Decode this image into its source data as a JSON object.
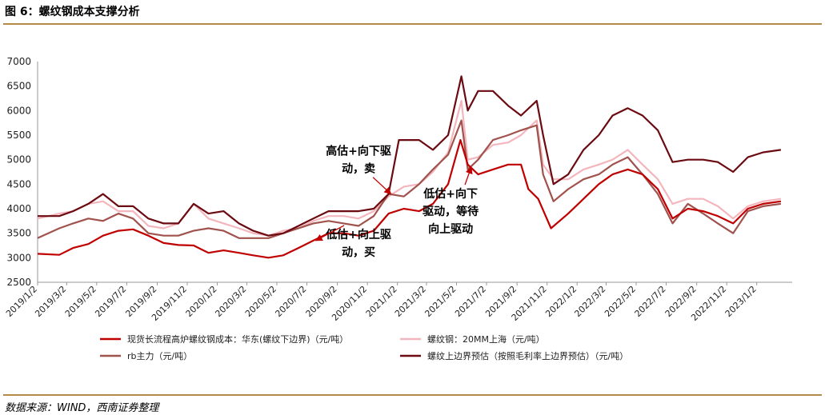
{
  "figure": {
    "title": "图 6：螺纹钢成本支撑分析",
    "source": "数据来源：WIND，西南证券整理"
  },
  "chart_data": {
    "type": "line",
    "x_ticks": [
      "2019/1/2",
      "2019/3/2",
      "2019/5/2",
      "2019/7/2",
      "2019/9/2",
      "2019/11/2",
      "2020/1/2",
      "2020/3/2",
      "2020/5/2",
      "2020/7/2",
      "2020/9/2",
      "2020/11/2",
      "2021/1/2",
      "2021/3/2",
      "2021/5/2",
      "2021/7/2",
      "2021/9/2",
      "2021/11/2",
      "2022/1/2",
      "2022/3/2",
      "2022/5/2",
      "2022/7/2",
      "2022/9/2",
      "2022/11/2",
      "2023/1/2"
    ],
    "ylim": [
      2500,
      7000
    ],
    "y_ticks": [
      2500,
      3000,
      3500,
      4000,
      4500,
      5000,
      5500,
      6000,
      6500,
      7000
    ],
    "grid": false,
    "legend_position": "bottom",
    "series": [
      {
        "name": "现货长流程高炉螺纹钢成本：华东(螺纹下边界)（元/吨）",
        "color": "#c00000",
        "points": [
          [
            "2019/1/2",
            3080
          ],
          [
            "2019/2/15",
            3060
          ],
          [
            "2019/3/15",
            3200
          ],
          [
            "2019/4/15",
            3280
          ],
          [
            "2019/5/15",
            3450
          ],
          [
            "2019/6/15",
            3550
          ],
          [
            "2019/7/15",
            3580
          ],
          [
            "2019/8/15",
            3450
          ],
          [
            "2019/9/15",
            3300
          ],
          [
            "2019/10/15",
            3260
          ],
          [
            "2019/11/15",
            3250
          ],
          [
            "2019/12/15",
            3100
          ],
          [
            "2020/1/15",
            3150
          ],
          [
            "2020/2/15",
            3100
          ],
          [
            "2020/3/15",
            3050
          ],
          [
            "2020/4/15",
            3000
          ],
          [
            "2020/5/15",
            3050
          ],
          [
            "2020/6/15",
            3200
          ],
          [
            "2020/7/15",
            3350
          ],
          [
            "2020/8/15",
            3500
          ],
          [
            "2020/9/15",
            3500
          ],
          [
            "2020/10/15",
            3450
          ],
          [
            "2020/11/15",
            3550
          ],
          [
            "2020/12/15",
            3900
          ],
          [
            "2021/1/15",
            4000
          ],
          [
            "2021/2/15",
            3950
          ],
          [
            "2021/3/15",
            4100
          ],
          [
            "2021/4/15",
            4500
          ],
          [
            "2021/5/10",
            5400
          ],
          [
            "2021/5/25",
            4900
          ],
          [
            "2021/6/15",
            4700
          ],
          [
            "2021/7/15",
            4800
          ],
          [
            "2021/8/15",
            4900
          ],
          [
            "2021/9/10",
            4900
          ],
          [
            "2021/9/25",
            4400
          ],
          [
            "2021/10/15",
            4200
          ],
          [
            "2021/11/10",
            3600
          ],
          [
            "2021/12/15",
            3900
          ],
          [
            "2022/1/15",
            4200
          ],
          [
            "2022/2/15",
            4500
          ],
          [
            "2022/3/15",
            4700
          ],
          [
            "2022/4/15",
            4800
          ],
          [
            "2022/5/15",
            4700
          ],
          [
            "2022/6/15",
            4400
          ],
          [
            "2022/7/15",
            3800
          ],
          [
            "2022/8/15",
            4000
          ],
          [
            "2022/9/15",
            3950
          ],
          [
            "2022/10/15",
            3850
          ],
          [
            "2022/11/15",
            3700
          ],
          [
            "2022/12/15",
            4000
          ],
          [
            "2023/1/15",
            4100
          ],
          [
            "2023/2/20",
            4150
          ]
        ]
      },
      {
        "name": "螺纹钢：20MM上海（元/吨）",
        "color": "#f4b6bd",
        "points": [
          [
            "2019/1/2",
            3800
          ],
          [
            "2019/2/15",
            3900
          ],
          [
            "2019/3/15",
            3950
          ],
          [
            "2019/4/15",
            4100
          ],
          [
            "2019/5/15",
            4150
          ],
          [
            "2019/6/15",
            3950
          ],
          [
            "2019/7/15",
            3950
          ],
          [
            "2019/8/15",
            3650
          ],
          [
            "2019/9/15",
            3600
          ],
          [
            "2019/10/15",
            3700
          ],
          [
            "2019/11/15",
            4100
          ],
          [
            "2019/12/15",
            3800
          ],
          [
            "2020/1/15",
            3700
          ],
          [
            "2020/2/15",
            3600
          ],
          [
            "2020/3/15",
            3500
          ],
          [
            "2020/4/15",
            3450
          ],
          [
            "2020/5/15",
            3550
          ],
          [
            "2020/6/15",
            3600
          ],
          [
            "2020/7/15",
            3750
          ],
          [
            "2020/8/15",
            3850
          ],
          [
            "2020/9/15",
            3850
          ],
          [
            "2020/10/15",
            3800
          ],
          [
            "2020/11/15",
            3950
          ],
          [
            "2020/12/15",
            4250
          ],
          [
            "2021/1/15",
            4450
          ],
          [
            "2021/2/15",
            4500
          ],
          [
            "2021/3/15",
            4750
          ],
          [
            "2021/4/15",
            5150
          ],
          [
            "2021/5/12",
            6200
          ],
          [
            "2021/5/25",
            5000
          ],
          [
            "2021/6/15",
            5050
          ],
          [
            "2021/7/15",
            5300
          ],
          [
            "2021/8/15",
            5350
          ],
          [
            "2021/9/10",
            5500
          ],
          [
            "2021/10/12",
            5800
          ],
          [
            "2021/10/25",
            4900
          ],
          [
            "2021/11/15",
            4600
          ],
          [
            "2021/12/15",
            4600
          ],
          [
            "2022/1/15",
            4800
          ],
          [
            "2022/2/15",
            4900
          ],
          [
            "2022/3/15",
            5000
          ],
          [
            "2022/4/15",
            5200
          ],
          [
            "2022/5/15",
            4900
          ],
          [
            "2022/6/15",
            4600
          ],
          [
            "2022/7/15",
            4100
          ],
          [
            "2022/8/15",
            4200
          ],
          [
            "2022/9/15",
            4200
          ],
          [
            "2022/10/15",
            4050
          ],
          [
            "2022/11/15",
            3800
          ],
          [
            "2022/12/15",
            4050
          ],
          [
            "2023/1/15",
            4150
          ],
          [
            "2023/2/20",
            4200
          ]
        ]
      },
      {
        "name": "rb主力（元/吨）",
        "color": "#a0524d",
        "points": [
          [
            "2019/1/2",
            3400
          ],
          [
            "2019/2/15",
            3600
          ],
          [
            "2019/3/15",
            3700
          ],
          [
            "2019/4/15",
            3800
          ],
          [
            "2019/5/15",
            3750
          ],
          [
            "2019/6/15",
            3900
          ],
          [
            "2019/7/15",
            3800
          ],
          [
            "2019/8/15",
            3500
          ],
          [
            "2019/9/15",
            3450
          ],
          [
            "2019/10/15",
            3450
          ],
          [
            "2019/11/15",
            3550
          ],
          [
            "2019/12/15",
            3600
          ],
          [
            "2020/1/15",
            3550
          ],
          [
            "2020/2/15",
            3400
          ],
          [
            "2020/3/15",
            3400
          ],
          [
            "2020/4/15",
            3400
          ],
          [
            "2020/5/15",
            3500
          ],
          [
            "2020/6/15",
            3600
          ],
          [
            "2020/7/15",
            3700
          ],
          [
            "2020/8/15",
            3750
          ],
          [
            "2020/9/15",
            3700
          ],
          [
            "2020/10/15",
            3650
          ],
          [
            "2020/11/15",
            3850
          ],
          [
            "2020/12/15",
            4300
          ],
          [
            "2021/1/15",
            4250
          ],
          [
            "2021/2/15",
            4500
          ],
          [
            "2021/3/15",
            4800
          ],
          [
            "2021/4/15",
            5100
          ],
          [
            "2021/5/12",
            5800
          ],
          [
            "2021/5/25",
            4800
          ],
          [
            "2021/6/15",
            5000
          ],
          [
            "2021/7/15",
            5400
          ],
          [
            "2021/8/15",
            5500
          ],
          [
            "2021/9/10",
            5600
          ],
          [
            "2021/10/12",
            5700
          ],
          [
            "2021/10/25",
            4700
          ],
          [
            "2021/11/15",
            4150
          ],
          [
            "2021/12/15",
            4400
          ],
          [
            "2022/1/15",
            4600
          ],
          [
            "2022/2/15",
            4700
          ],
          [
            "2022/3/15",
            4900
          ],
          [
            "2022/4/15",
            5050
          ],
          [
            "2022/5/15",
            4700
          ],
          [
            "2022/6/15",
            4300
          ],
          [
            "2022/7/15",
            3700
          ],
          [
            "2022/8/15",
            4100
          ],
          [
            "2022/9/15",
            3900
          ],
          [
            "2022/10/15",
            3700
          ],
          [
            "2022/11/15",
            3500
          ],
          [
            "2022/12/15",
            3950
          ],
          [
            "2023/1/15",
            4050
          ],
          [
            "2023/2/20",
            4100
          ]
        ]
      },
      {
        "name": "螺纹上边界预估（按照毛利率上边界预估）（元/吨）",
        "color": "#6b0a10",
        "points": [
          [
            "2019/1/2",
            3850
          ],
          [
            "2019/2/15",
            3850
          ],
          [
            "2019/3/15",
            3950
          ],
          [
            "2019/4/15",
            4100
          ],
          [
            "2019/5/15",
            4300
          ],
          [
            "2019/6/15",
            4050
          ],
          [
            "2019/7/15",
            4050
          ],
          [
            "2019/8/15",
            3800
          ],
          [
            "2019/9/15",
            3700
          ],
          [
            "2019/10/15",
            3700
          ],
          [
            "2019/11/15",
            4100
          ],
          [
            "2019/12/15",
            3900
          ],
          [
            "2020/1/15",
            3950
          ],
          [
            "2020/2/15",
            3700
          ],
          [
            "2020/3/15",
            3550
          ],
          [
            "2020/4/15",
            3450
          ],
          [
            "2020/5/15",
            3500
          ],
          [
            "2020/6/15",
            3650
          ],
          [
            "2020/7/15",
            3800
          ],
          [
            "2020/8/15",
            3950
          ],
          [
            "2020/9/15",
            3950
          ],
          [
            "2020/10/15",
            3950
          ],
          [
            "2020/11/15",
            4000
          ],
          [
            "2020/12/15",
            4300
          ],
          [
            "2021/1/5",
            5400
          ],
          [
            "2021/2/15",
            5400
          ],
          [
            "2021/3/15",
            5200
          ],
          [
            "2021/4/15",
            5500
          ],
          [
            "2021/5/12",
            6700
          ],
          [
            "2021/5/25",
            6000
          ],
          [
            "2021/6/15",
            6400
          ],
          [
            "2021/7/15",
            6400
          ],
          [
            "2021/8/15",
            6100
          ],
          [
            "2021/9/10",
            5900
          ],
          [
            "2021/10/12",
            6200
          ],
          [
            "2021/10/25",
            5500
          ],
          [
            "2021/11/15",
            4500
          ],
          [
            "2021/12/15",
            4700
          ],
          [
            "2022/1/15",
            5200
          ],
          [
            "2022/2/15",
            5500
          ],
          [
            "2022/3/15",
            5900
          ],
          [
            "2022/4/15",
            6050
          ],
          [
            "2022/5/15",
            5900
          ],
          [
            "2022/6/15",
            5600
          ],
          [
            "2022/7/15",
            4950
          ],
          [
            "2022/8/15",
            5000
          ],
          [
            "2022/9/15",
            5000
          ],
          [
            "2022/10/15",
            4950
          ],
          [
            "2022/11/15",
            4750
          ],
          [
            "2022/12/15",
            5050
          ],
          [
            "2023/1/15",
            5150
          ],
          [
            "2023/2/20",
            5200
          ]
        ]
      }
    ],
    "annotations": [
      {
        "lines": [
          "高估+向下驱",
          "动，卖"
        ],
        "at": [
          "2020/10/15",
          5000
        ],
        "arrow_to": [
          "2020/12/20",
          4300
        ]
      },
      {
        "lines": [
          "低估+向上驱",
          "动，买"
        ],
        "at": [
          "2020/10/15",
          3300
        ],
        "arrow_to": [
          "2020/7/20",
          3350
        ]
      },
      {
        "lines": [
          "低估+向下",
          "驱动，等待",
          "向上驱动"
        ],
        "at": [
          "2021/4/20",
          3950
        ],
        "arrow_to": [
          "2021/6/1",
          4850
        ]
      }
    ]
  }
}
